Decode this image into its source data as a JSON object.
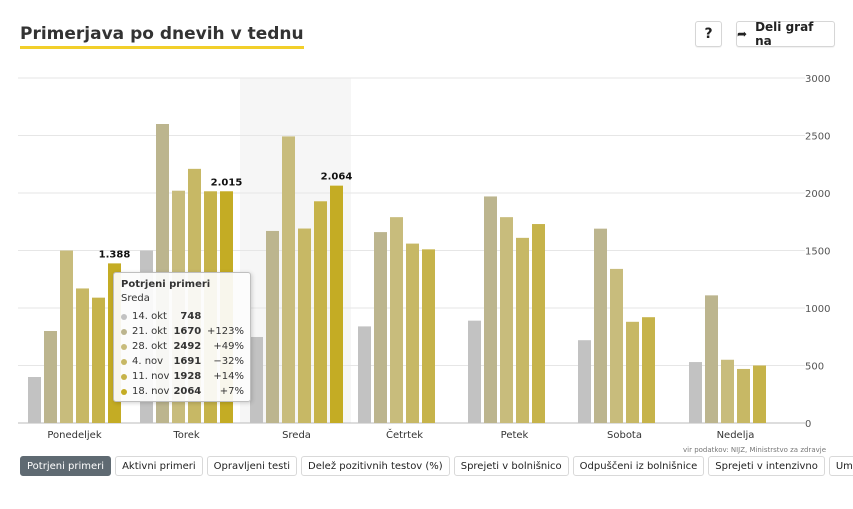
{
  "header": {
    "title": "Primerjava po dnevih v tednu"
  },
  "buttons": {
    "help_label": "?",
    "share_label": "Deli graf na"
  },
  "source": "vir podatkov: NIJZ, Ministrstvo za zdravje",
  "tabs": [
    "Potrjeni primeri",
    "Aktivni primeri",
    "Opravljeni testi",
    "Delež pozitivnih testov (%)",
    "Sprejeti v bolnišnico",
    "Odpuščeni iz bolnišnice",
    "Sprejeti v intenzivno",
    "Umrli"
  ],
  "active_tab": 0,
  "tooltip": {
    "title": "Potrjeni primeri",
    "day": "Sreda",
    "rows": [
      {
        "date": "14. okt",
        "value": "748",
        "change": ""
      },
      {
        "date": "21. okt",
        "value": "1670",
        "change": "+123%"
      },
      {
        "date": "28. okt",
        "value": "2492",
        "change": "+49%"
      },
      {
        "date": "4. nov",
        "value": "1691",
        "change": "−32%"
      },
      {
        "date": "11. nov",
        "value": "1928",
        "change": "+14%"
      },
      {
        "date": "18. nov",
        "value": "2064",
        "change": "+7%"
      }
    ]
  },
  "chart_data": {
    "type": "bar",
    "categories": [
      "Ponedeljek",
      "Torek",
      "Sreda",
      "Četrtek",
      "Petek",
      "Sobota",
      "Nedelja"
    ],
    "series": [
      {
        "name": "14. okt",
        "color": "#c2c2c2",
        "values": [
          400,
          1500,
          748,
          840,
          890,
          720,
          530
        ]
      },
      {
        "name": "21. okt",
        "color": "#bcb58e",
        "values": [
          800,
          2600,
          1670,
          1660,
          1970,
          1690,
          1110
        ]
      },
      {
        "name": "28. okt",
        "color": "#c8bc7c",
        "values": [
          1500,
          2020,
          2492,
          1790,
          1790,
          1340,
          550
        ]
      },
      {
        "name": "4. nov",
        "color": "#c7b865",
        "values": [
          1170,
          2210,
          1691,
          1560,
          1610,
          880,
          470
        ]
      },
      {
        "name": "11. nov",
        "color": "#c6b34a",
        "values": [
          1090,
          2015,
          1928,
          1510,
          1730,
          920,
          500
        ]
      },
      {
        "name": "18. nov",
        "color": "#c4ac24",
        "values": [
          1388,
          2015,
          2064,
          null,
          null,
          null,
          null
        ]
      }
    ],
    "data_labels": [
      {
        "category": "Ponedeljek",
        "text": "1.388",
        "value": 1388
      },
      {
        "category": "Torek",
        "text": "2.015",
        "value": 2015
      },
      {
        "category": "Sreda",
        "text": "2.064",
        "value": 2064
      }
    ],
    "highlight_category": "Sreda",
    "yticks": [
      "0",
      "500",
      "1000",
      "1500",
      "2000",
      "2500",
      "3000"
    ],
    "ylim": [
      0,
      3000
    ],
    "grid": true,
    "y_axis_side": "right"
  }
}
